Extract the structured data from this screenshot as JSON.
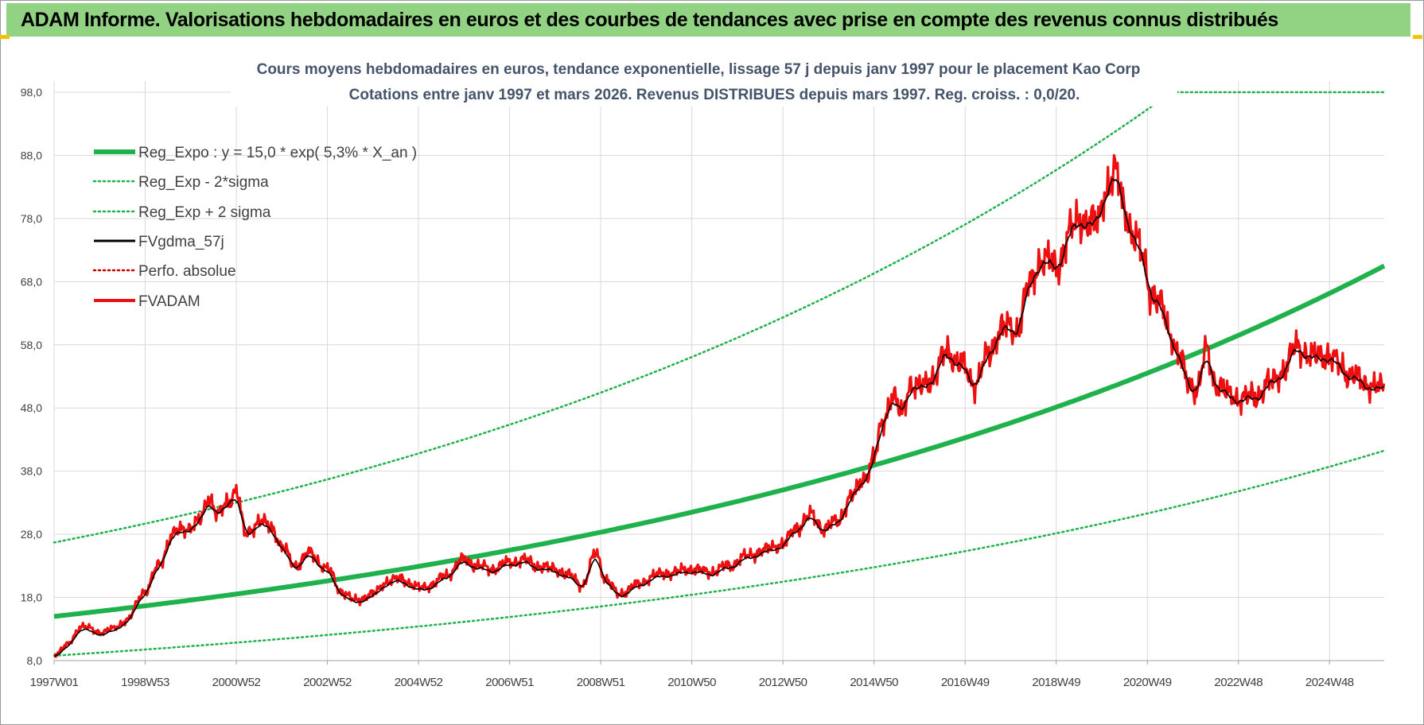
{
  "header": {
    "title": "ADAM Informe. Valorisations hebdomadaires en euros et des courbes de tendances avec prise en compte des revenus connus distribués"
  },
  "colors": {
    "header_bg": "#92d283",
    "reg_expo": "#1fb14b",
    "fvgdma": "#000000",
    "perfo": "#c00000",
    "fvadam": "#ee1010",
    "grid": "#d9d9d9"
  },
  "chart_data": {
    "type": "line",
    "title_line1": "Cours moyens hebdomadaires en euros, tendance exponentielle, lissage 57 j depuis janv 1997  pour le placement Kao Corp",
    "title_line2": "Cotations entre janv 1997 et mars 2026. Revenus DISTRIBUES depuis mars 1997.  Reg. croiss. : 0,0/20.",
    "x_tick_labels": [
      "1997W01",
      "1998W53",
      "2000W52",
      "2002W52",
      "2004W52",
      "2006W51",
      "2008W51",
      "2010W50",
      "2012W50",
      "2014W50",
      "2016W49",
      "2018W49",
      "2020W49",
      "2022W48",
      "2024W48"
    ],
    "x_tick_years": [
      1997.0,
      1999.0,
      2001.0,
      2003.0,
      2005.0,
      2007.0,
      2009.0,
      2011.0,
      2013.0,
      2015.0,
      2017.0,
      2019.0,
      2021.0,
      2023.0,
      2025.0
    ],
    "x_range": [
      1997.0,
      2026.2
    ],
    "y_ticks": [
      "8,0",
      "18,0",
      "28,0",
      "38,0",
      "48,0",
      "58,0",
      "68,0",
      "78,0",
      "88,0",
      "98,0"
    ],
    "ylim": [
      8,
      98
    ],
    "grid": true,
    "legend_position": "top-left",
    "regression": {
      "a": 15.0,
      "rate": 0.053,
      "minus_2sigma_factor": 0.585,
      "plus_2sigma_factor": 1.78
    },
    "series": [
      {
        "name": "Reg_Expo : y = 15,0 * exp( 5,3% *  X_an )",
        "style": "thick-solid",
        "color": "#1fb14b"
      },
      {
        "name": "Reg_Exp - 2*sigma",
        "style": "dotted",
        "color": "#1fb14b"
      },
      {
        "name": "Reg_Exp + 2 sigma",
        "style": "dotted",
        "color": "#1fb14b"
      },
      {
        "name": "FVgdma_57j",
        "style": "solid",
        "color": "#000000"
      },
      {
        "name": "Perfo. absolue",
        "style": "dotted",
        "color": "#c00000"
      },
      {
        "name": "FVADAM",
        "style": "solid",
        "color": "#ee1010",
        "points": [
          [
            1997.0,
            9.0
          ],
          [
            1997.3,
            10.5
          ],
          [
            1997.6,
            13.5
          ],
          [
            1998.0,
            12.5
          ],
          [
            1998.3,
            13.0
          ],
          [
            1998.6,
            14.5
          ],
          [
            1999.0,
            19.0
          ],
          [
            1999.3,
            23.0
          ],
          [
            1999.6,
            28.0
          ],
          [
            1999.9,
            29.0
          ],
          [
            2000.2,
            30.0
          ],
          [
            2000.4,
            34.0
          ],
          [
            2000.6,
            31.0
          ],
          [
            2000.8,
            33.0
          ],
          [
            2001.0,
            35.0
          ],
          [
            2001.2,
            28.0
          ],
          [
            2001.5,
            30.0
          ],
          [
            2001.8,
            29.0
          ],
          [
            2002.0,
            26.0
          ],
          [
            2002.3,
            23.0
          ],
          [
            2002.6,
            25.0
          ],
          [
            2003.0,
            22.5
          ],
          [
            2003.3,
            19.0
          ],
          [
            2003.6,
            17.5
          ],
          [
            2004.0,
            18.5
          ],
          [
            2004.3,
            20.5
          ],
          [
            2004.6,
            21.0
          ],
          [
            2005.0,
            19.5
          ],
          [
            2005.3,
            20.0
          ],
          [
            2005.6,
            21.5
          ],
          [
            2006.0,
            24.0
          ],
          [
            2006.3,
            23.0
          ],
          [
            2006.6,
            22.5
          ],
          [
            2007.0,
            23.5
          ],
          [
            2007.3,
            24.0
          ],
          [
            2007.6,
            23.0
          ],
          [
            2008.0,
            22.5
          ],
          [
            2008.3,
            21.5
          ],
          [
            2008.6,
            20.0
          ],
          [
            2008.9,
            25.0
          ],
          [
            2009.1,
            21.0
          ],
          [
            2009.4,
            18.5
          ],
          [
            2009.8,
            20.0
          ],
          [
            2010.2,
            21.5
          ],
          [
            2010.6,
            22.0
          ],
          [
            2011.0,
            22.5
          ],
          [
            2011.4,
            22.0
          ],
          [
            2011.8,
            23.0
          ],
          [
            2012.2,
            24.5
          ],
          [
            2012.6,
            25.5
          ],
          [
            2013.0,
            26.5
          ],
          [
            2013.3,
            29.0
          ],
          [
            2013.6,
            31.0
          ],
          [
            2013.9,
            29.0
          ],
          [
            2014.2,
            30.0
          ],
          [
            2014.5,
            34.0
          ],
          [
            2014.8,
            37.0
          ],
          [
            2015.0,
            40.0
          ],
          [
            2015.2,
            46.0
          ],
          [
            2015.4,
            50.0
          ],
          [
            2015.6,
            47.0
          ],
          [
            2015.8,
            52.0
          ],
          [
            2016.0,
            51.0
          ],
          [
            2016.3,
            53.0
          ],
          [
            2016.6,
            57.0
          ],
          [
            2016.9,
            55.0
          ],
          [
            2017.2,
            52.0
          ],
          [
            2017.5,
            56.0
          ],
          [
            2017.8,
            61.0
          ],
          [
            2018.1,
            60.0
          ],
          [
            2018.4,
            67.0
          ],
          [
            2018.7,
            72.0
          ],
          [
            2019.0,
            70.0
          ],
          [
            2019.3,
            76.0
          ],
          [
            2019.6,
            78.0
          ],
          [
            2019.9,
            77.0
          ],
          [
            2020.1,
            83.0
          ],
          [
            2020.3,
            85.0
          ],
          [
            2020.5,
            80.0
          ],
          [
            2020.7,
            75.0
          ],
          [
            2020.9,
            72.0
          ],
          [
            2021.1,
            66.0
          ],
          [
            2021.3,
            64.0
          ],
          [
            2021.5,
            60.0
          ],
          [
            2021.7,
            56.0
          ],
          [
            2021.9,
            52.0
          ],
          [
            2022.1,
            51.0
          ],
          [
            2022.3,
            57.0
          ],
          [
            2022.5,
            52.0
          ],
          [
            2022.8,
            50.0
          ],
          [
            2023.1,
            49.5
          ],
          [
            2023.4,
            50.0
          ],
          [
            2023.7,
            52.0
          ],
          [
            2024.0,
            54.0
          ],
          [
            2024.3,
            58.0
          ],
          [
            2024.6,
            56.0
          ],
          [
            2024.9,
            56.5
          ],
          [
            2025.2,
            55.0
          ],
          [
            2025.5,
            53.0
          ],
          [
            2025.8,
            52.0
          ],
          [
            2026.1,
            51.0
          ]
        ]
      }
    ]
  }
}
